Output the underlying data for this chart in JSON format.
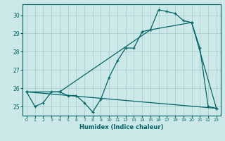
{
  "title": "",
  "xlabel": "Humidex (Indice chaleur)",
  "background_color": "#cce8e8",
  "grid_color": "#aacfcf",
  "line_color": "#006666",
  "xlim": [
    -0.5,
    23.5
  ],
  "ylim": [
    24.5,
    30.6
  ],
  "yticks": [
    25,
    26,
    27,
    28,
    29,
    30
  ],
  "xticks": [
    0,
    1,
    2,
    3,
    4,
    5,
    6,
    7,
    8,
    9,
    10,
    11,
    12,
    13,
    14,
    15,
    16,
    17,
    18,
    19,
    20,
    21,
    22,
    23
  ],
  "series1_x": [
    0,
    1,
    2,
    3,
    4,
    5,
    6,
    7,
    8,
    9,
    10,
    11,
    12,
    13,
    14,
    15,
    16,
    17,
    18,
    19,
    20,
    21,
    22,
    23
  ],
  "series1_y": [
    25.8,
    25.0,
    25.2,
    25.8,
    25.8,
    25.6,
    25.6,
    25.2,
    24.7,
    25.4,
    26.6,
    27.5,
    28.2,
    28.2,
    29.1,
    29.2,
    30.3,
    30.2,
    30.1,
    29.7,
    29.6,
    28.2,
    25.0,
    24.9
  ],
  "series2_x": [
    0,
    4,
    15,
    20,
    23
  ],
  "series2_y": [
    25.8,
    25.8,
    29.2,
    29.6,
    24.9
  ],
  "series3_x": [
    0,
    23
  ],
  "series3_y": [
    25.8,
    24.9
  ]
}
